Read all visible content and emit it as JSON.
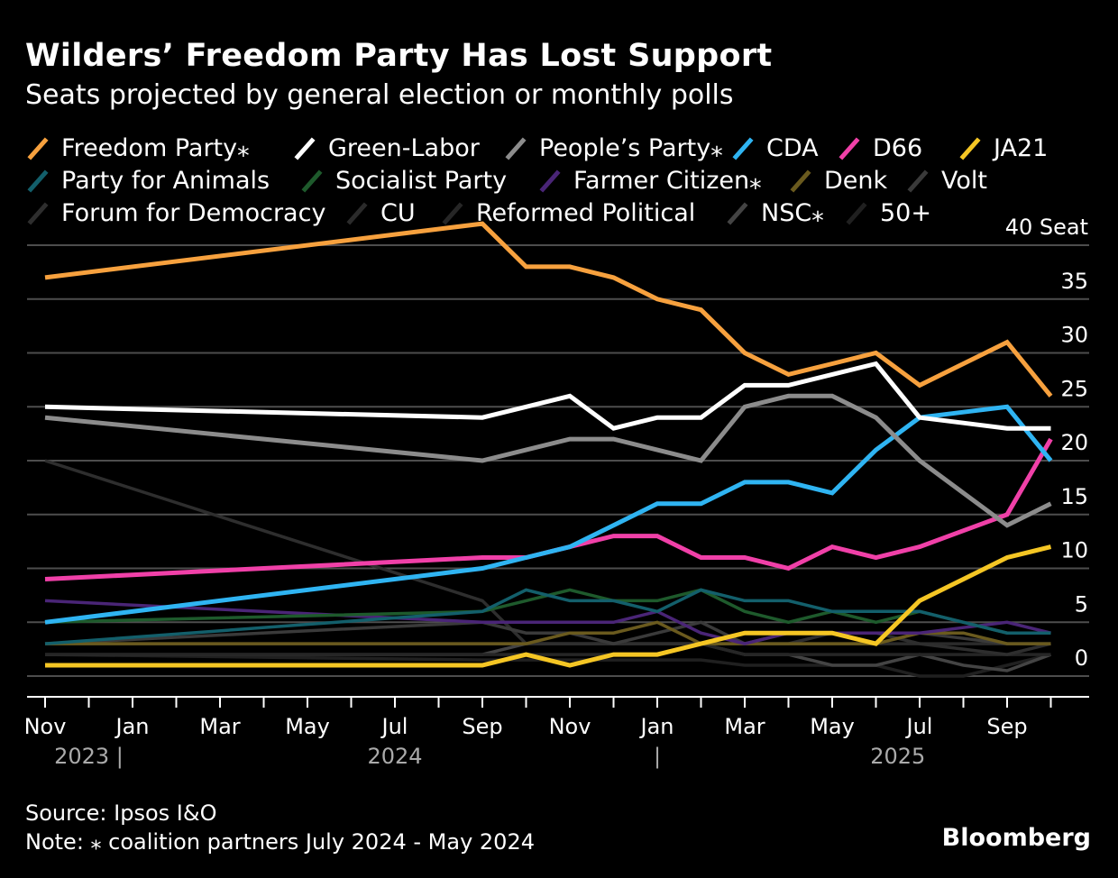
{
  "title": "Wilders’ Freedom Party Has Lost Support",
  "subtitle": "Seats projected by general election or monthly polls",
  "source": "Source: Ipsos I&O",
  "note": "Note: ⁎ coalition partners July 2024 - May 2024",
  "brand": "Bloomberg",
  "chart_data": {
    "type": "line",
    "title": "Wilders’ Freedom Party Has Lost Support",
    "subtitle": "Seats projected by general election or monthly polls",
    "ylabel": "Seat",
    "ylim": [
      -2,
      40
    ],
    "yticks": [
      0,
      5,
      10,
      15,
      20,
      25,
      30,
      35,
      40
    ],
    "ytick_labels": [
      "0",
      "5",
      "10",
      "15",
      "20",
      "25",
      "30",
      "35",
      "40 Seat"
    ],
    "grid": true,
    "x_unit": "months since Nov 2023",
    "xticks": [
      0,
      2,
      4,
      6,
      8,
      10,
      12,
      14,
      16,
      18,
      20,
      22
    ],
    "xtick_labels": [
      "Nov",
      "Jan",
      "Mar",
      "May",
      "Jul",
      "Sep",
      "Nov",
      "Jan",
      "Mar",
      "May",
      "Jul",
      "Sep"
    ],
    "year_labels": [
      {
        "text": "2023 |",
        "x": 1
      },
      {
        "text": "2024",
        "x": 8
      },
      {
        "text": "|",
        "x": 14
      },
      {
        "text": "2025",
        "x": 19.5
      }
    ],
    "x": [
      0,
      10,
      11,
      12,
      13,
      14,
      15,
      16,
      17,
      18,
      19,
      20,
      21,
      22,
      23
    ],
    "series": [
      {
        "name": "Freedom Party⁎",
        "color": "#f7a13e",
        "values": [
          37,
          42,
          38,
          38,
          37,
          35,
          34,
          30,
          28,
          29,
          30,
          27,
          29,
          31,
          26
        ]
      },
      {
        "name": "Green-Labor",
        "color": "#ffffff",
        "values": [
          25,
          24,
          25,
          26,
          23,
          24,
          24,
          27,
          27,
          28,
          29,
          24,
          23.5,
          23,
          23
        ]
      },
      {
        "name": "People’s Party⁎",
        "color": "#8c8c8c",
        "values": [
          24,
          20,
          21,
          22,
          22,
          21,
          20,
          25,
          26,
          26,
          24,
          20,
          17,
          14,
          16
        ]
      },
      {
        "name": "CDA",
        "color": "#2fb4f2",
        "values": [
          5,
          10,
          11,
          12,
          14,
          16,
          16,
          18,
          18,
          17,
          21,
          24,
          24.5,
          25,
          20
        ]
      },
      {
        "name": "D66",
        "color": "#f040a8",
        "values": [
          9,
          11,
          11,
          12,
          13,
          13,
          11,
          11,
          10,
          12,
          11,
          12,
          13.5,
          15,
          22
        ]
      },
      {
        "name": "JA21",
        "color": "#f5c624",
        "values": [
          1,
          1,
          2,
          1,
          2,
          2,
          3,
          4,
          4,
          4,
          3,
          7,
          9,
          11,
          12
        ]
      },
      {
        "name": "Party for Animals",
        "color": "#135f6b",
        "values": [
          3,
          6,
          8,
          7,
          7,
          6,
          8,
          7,
          7,
          6,
          6,
          6,
          5,
          4,
          4
        ]
      },
      {
        "name": "Socialist Party",
        "color": "#1e5a2c",
        "values": [
          5,
          6,
          7,
          8,
          7,
          7,
          8,
          6,
          5,
          6,
          5,
          6,
          5,
          4,
          4
        ]
      },
      {
        "name": "Farmer Citizen⁎",
        "color": "#4a2577",
        "values": [
          7,
          5,
          5,
          5,
          5,
          6,
          4,
          3,
          4,
          4,
          4,
          4,
          4.5,
          5,
          4
        ]
      },
      {
        "name": "Denk",
        "color": "#6a5a1e",
        "values": [
          3,
          3,
          3,
          4,
          4,
          5,
          3,
          3,
          3,
          3,
          3,
          4,
          4,
          3,
          3
        ]
      },
      {
        "name": "Volt",
        "color": "#3a3a3a",
        "values": [
          3,
          5,
          4,
          4,
          3,
          4,
          5,
          3,
          4,
          4,
          4,
          4,
          3.5,
          3,
          3
        ]
      },
      {
        "name": "Forum for Democracy",
        "color": "#2e2e2e",
        "values": [
          20,
          7,
          3,
          3,
          3,
          3,
          3,
          3,
          3,
          4,
          4,
          3,
          2.5,
          2,
          3
        ]
      },
      {
        "name": "CU",
        "color": "#2b2b2b",
        "values": [
          3,
          3,
          3,
          3,
          3,
          3,
          3,
          3,
          3,
          3,
          3,
          3,
          3,
          3,
          3
        ]
      },
      {
        "name": "Reformed Political",
        "color": "#262626",
        "values": [
          2,
          2,
          2,
          2,
          2,
          2,
          3,
          2,
          2,
          2,
          2,
          2,
          2,
          2,
          2
        ]
      },
      {
        "name": "NSC⁎",
        "color": "#444444",
        "values": [
          2,
          2,
          3,
          3,
          3,
          3,
          3,
          2,
          2,
          1,
          1,
          2,
          1,
          0.5,
          2
        ]
      },
      {
        "name": "50+",
        "color": "#202020",
        "values": [
          2,
          1.5,
          1.5,
          1.5,
          1.5,
          1.5,
          1.5,
          1,
          1,
          1,
          1,
          0,
          0,
          1,
          2
        ]
      }
    ],
    "legend_position": "top"
  }
}
